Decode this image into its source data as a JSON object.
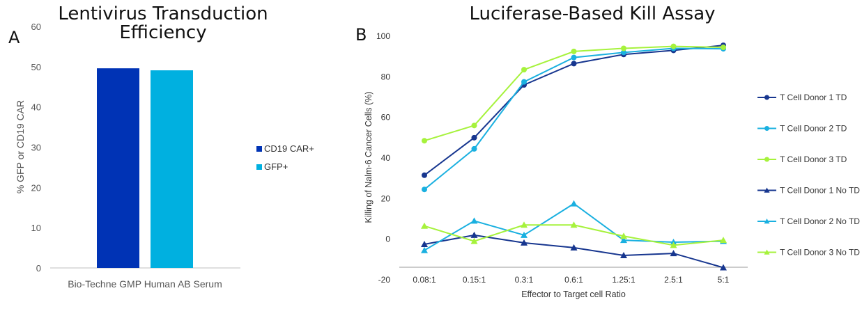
{
  "panels": {
    "a_letter": "A",
    "b_letter": "B"
  },
  "chart_data": [
    {
      "type": "bar",
      "title_lines": [
        "Lentivirus Transduction",
        "Efficiency"
      ],
      "categories": [
        "Bio-Techne GMP Human AB Serum"
      ],
      "series": [
        {
          "name": "CD19 CAR+",
          "color": "#0033b5",
          "values": [
            49.6
          ]
        },
        {
          "name": "GFP+",
          "color": "#00b0e0",
          "values": [
            49.1
          ]
        }
      ],
      "xlabel": "",
      "ylabel": "% GFP or CD19 CAR",
      "ylim": [
        0,
        60
      ],
      "yticks": [
        0,
        10,
        20,
        30,
        40,
        50,
        60
      ],
      "grid": false,
      "legend": "right"
    },
    {
      "type": "line",
      "title": "Luciferase-Based Kill Assay",
      "categories": [
        "0.08:1",
        "0.15:1",
        "0.3:1",
        "0.6:1",
        "1.25:1",
        "2.5:1",
        "5:1"
      ],
      "series": [
        {
          "name": "T Cell Donor 1 TD",
          "color": "#17368f",
          "marker": "circle",
          "values": [
            31.5,
            50,
            76,
            86.5,
            91,
            93,
            95.5
          ]
        },
        {
          "name": "T Cell Donor 2 TD",
          "color": "#1ab0e0",
          "marker": "circle",
          "values": [
            24.5,
            44.5,
            77.5,
            89.5,
            92,
            94,
            93.8
          ]
        },
        {
          "name": "T Cell Donor 3 TD",
          "color": "#a6f23c",
          "marker": "circle",
          "values": [
            48.5,
            56,
            83.5,
            92.5,
            94,
            95,
            94.5
          ]
        },
        {
          "name": "T Cell Donor 1 No TD",
          "color": "#17368f",
          "marker": "triangle",
          "values": [
            -2.5,
            2,
            -1.8,
            -4.2,
            -8,
            -7,
            -14
          ]
        },
        {
          "name": "T Cell Donor 2 No TD",
          "color": "#1ab0e0",
          "marker": "triangle",
          "values": [
            -5.5,
            9,
            2,
            17.5,
            -0.5,
            -1.5,
            -1
          ]
        },
        {
          "name": "T Cell Donor 3 No TD",
          "color": "#a6f23c",
          "marker": "triangle",
          "values": [
            6.5,
            -1,
            7,
            7,
            1.5,
            -3,
            -0.5
          ]
        }
      ],
      "xlabel": "Effector to Target cell Ratio",
      "ylabel": "Killing of Nalm-6 Cancer Cells (%)",
      "ylim": [
        -20,
        100
      ],
      "yticks": [
        -20,
        0,
        20,
        40,
        60,
        80,
        100
      ],
      "grid": false,
      "legend": "right"
    }
  ]
}
